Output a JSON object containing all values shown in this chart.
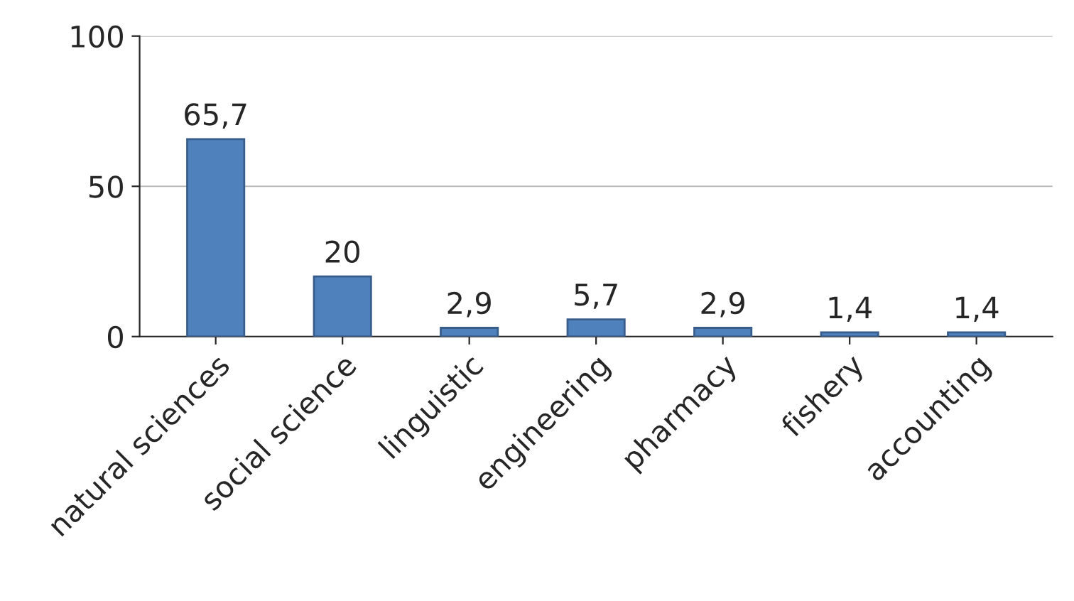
{
  "chart_data": {
    "type": "bar",
    "categories": [
      "natural sciences",
      "social science",
      "linguistic",
      "engineering",
      "pharmacy",
      "fishery",
      "accounting"
    ],
    "values": [
      65.7,
      20,
      2.9,
      5.7,
      2.9,
      1.4,
      1.4
    ],
    "value_labels": [
      "65,7",
      "20",
      "2,9",
      "5,7",
      "2,9",
      "1,4",
      "1,4"
    ],
    "color": "#4f81bd",
    "ylim": [
      0,
      100
    ],
    "yticks": [
      0,
      50,
      100
    ],
    "grid": "y"
  }
}
